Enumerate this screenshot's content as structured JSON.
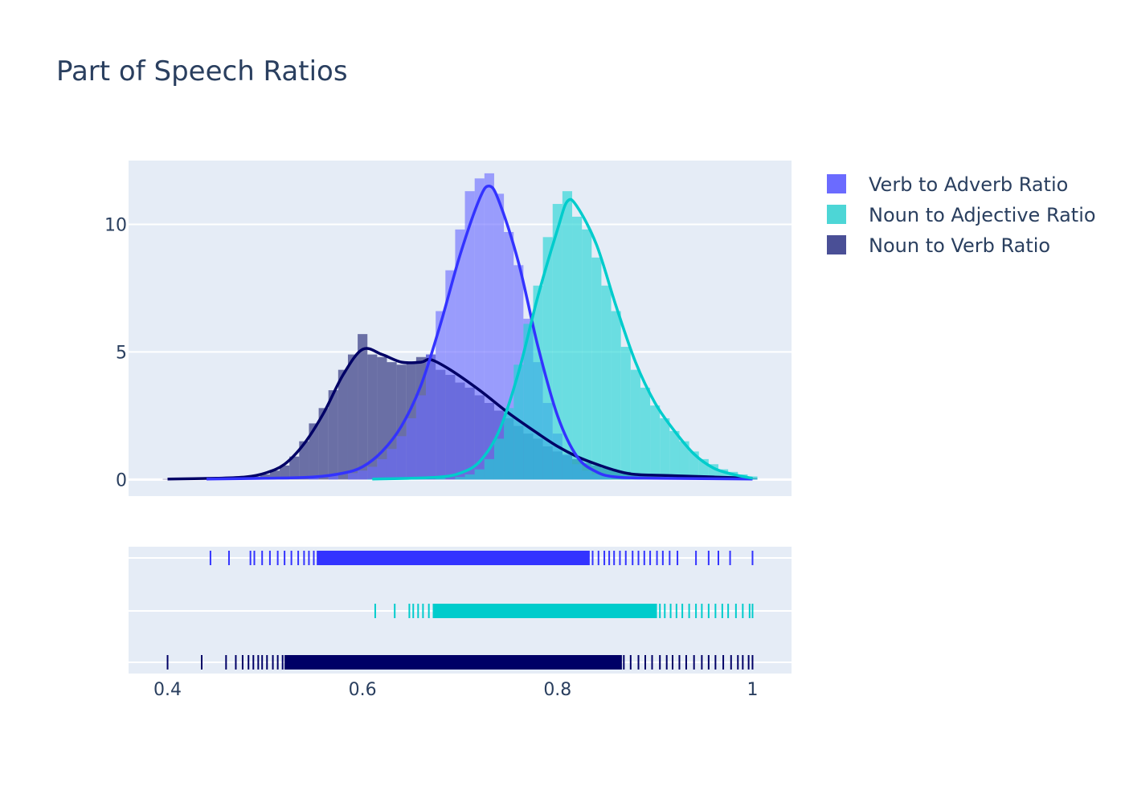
{
  "chart_data": {
    "type": "histogram-kde-rug",
    "title": "Part of Speech Ratios",
    "xlabel": "",
    "ylabel": "",
    "xlim": [
      0.36,
      1.04
    ],
    "ylim": [
      -0.65,
      12.5
    ],
    "x_ticks": [
      "0.4",
      "0.6",
      "0.8",
      "1"
    ],
    "x_tick_values": [
      0.4,
      0.6,
      0.8,
      1.0
    ],
    "y_ticks": [
      "0",
      "5",
      "10"
    ],
    "y_tick_values": [
      0,
      5,
      10
    ],
    "grid": true,
    "legend_position": "right",
    "bin_width": 0.01,
    "series": [
      {
        "name": "Noun to Verb Ratio",
        "color": "#000066",
        "bar_color": "#1f2273",
        "hist": [
          [
            0.4,
            0.02
          ],
          [
            0.44,
            0.03
          ],
          [
            0.46,
            0.05
          ],
          [
            0.48,
            0.08
          ],
          [
            0.49,
            0.12
          ],
          [
            0.5,
            0.2
          ],
          [
            0.51,
            0.35
          ],
          [
            0.52,
            0.55
          ],
          [
            0.53,
            0.9
          ],
          [
            0.54,
            1.5
          ],
          [
            0.55,
            2.2
          ],
          [
            0.56,
            2.8
          ],
          [
            0.57,
            3.5
          ],
          [
            0.58,
            4.3
          ],
          [
            0.59,
            4.9
          ],
          [
            0.6,
            5.7
          ],
          [
            0.61,
            4.9
          ],
          [
            0.62,
            4.8
          ],
          [
            0.63,
            4.6
          ],
          [
            0.64,
            4.5
          ],
          [
            0.65,
            4.6
          ],
          [
            0.66,
            4.8
          ],
          [
            0.67,
            4.9
          ],
          [
            0.68,
            4.3
          ],
          [
            0.69,
            4.1
          ],
          [
            0.7,
            3.8
          ],
          [
            0.71,
            3.6
          ],
          [
            0.72,
            3.3
          ],
          [
            0.73,
            3.0
          ],
          [
            0.74,
            2.7
          ],
          [
            0.75,
            2.4
          ],
          [
            0.76,
            2.1
          ],
          [
            0.77,
            1.8
          ],
          [
            0.78,
            1.6
          ],
          [
            0.79,
            1.3
          ],
          [
            0.8,
            1.1
          ],
          [
            0.81,
            0.95
          ],
          [
            0.82,
            0.8
          ],
          [
            0.83,
            0.65
          ],
          [
            0.84,
            0.55
          ],
          [
            0.85,
            0.45
          ],
          [
            0.86,
            0.35
          ],
          [
            0.87,
            0.3
          ],
          [
            0.88,
            0.25
          ],
          [
            0.89,
            0.2
          ],
          [
            0.9,
            0.18
          ],
          [
            0.92,
            0.15
          ],
          [
            0.94,
            0.12
          ],
          [
            0.96,
            0.1
          ],
          [
            0.98,
            0.08
          ],
          [
            1.0,
            0.06
          ]
        ],
        "kde": [
          [
            0.4,
            0.02
          ],
          [
            0.45,
            0.05
          ],
          [
            0.48,
            0.1
          ],
          [
            0.5,
            0.25
          ],
          [
            0.52,
            0.6
          ],
          [
            0.54,
            1.4
          ],
          [
            0.56,
            2.6
          ],
          [
            0.58,
            4.1
          ],
          [
            0.6,
            5.1
          ],
          [
            0.62,
            4.9
          ],
          [
            0.64,
            4.6
          ],
          [
            0.66,
            4.6
          ],
          [
            0.67,
            4.7
          ],
          [
            0.69,
            4.3
          ],
          [
            0.72,
            3.5
          ],
          [
            0.75,
            2.6
          ],
          [
            0.78,
            1.8
          ],
          [
            0.8,
            1.3
          ],
          [
            0.82,
            0.9
          ],
          [
            0.84,
            0.6
          ],
          [
            0.86,
            0.35
          ],
          [
            0.88,
            0.2
          ],
          [
            0.92,
            0.15
          ],
          [
            0.96,
            0.1
          ],
          [
            1.0,
            0.05
          ]
        ],
        "rug_min": 0.4,
        "rug_outliers": [
          0.4,
          0.435,
          0.46,
          0.47,
          0.477,
          0.483,
          0.488,
          0.493,
          0.497,
          0.502,
          0.508,
          0.513,
          0.518,
          0.868,
          0.875,
          0.883,
          0.89,
          0.897,
          0.905,
          0.912,
          0.918,
          0.925,
          0.932,
          0.94,
          0.948,
          0.955,
          0.962,
          0.97,
          0.978,
          0.985,
          0.99,
          0.996,
          1.0
        ],
        "rug_dense": [
          0.52,
          0.866
        ]
      },
      {
        "name": "Verb to Adverb Ratio",
        "color": "#3333ff",
        "bar_color": "#6b6bff",
        "hist": [
          [
            0.44,
            0.02
          ],
          [
            0.48,
            0.04
          ],
          [
            0.52,
            0.06
          ],
          [
            0.55,
            0.1
          ],
          [
            0.57,
            0.15
          ],
          [
            0.59,
            0.25
          ],
          [
            0.6,
            0.35
          ],
          [
            0.61,
            0.5
          ],
          [
            0.62,
            0.8
          ],
          [
            0.63,
            1.2
          ],
          [
            0.64,
            1.7
          ],
          [
            0.65,
            2.4
          ],
          [
            0.66,
            3.3
          ],
          [
            0.67,
            4.9
          ],
          [
            0.68,
            6.6
          ],
          [
            0.69,
            8.2
          ],
          [
            0.7,
            9.8
          ],
          [
            0.71,
            11.3
          ],
          [
            0.72,
            11.8
          ],
          [
            0.73,
            12.0
          ],
          [
            0.74,
            11.2
          ],
          [
            0.75,
            9.7
          ],
          [
            0.76,
            8.4
          ],
          [
            0.77,
            6.3
          ],
          [
            0.78,
            4.6
          ],
          [
            0.79,
            3.0
          ],
          [
            0.8,
            1.8
          ],
          [
            0.81,
            1.0
          ],
          [
            0.82,
            0.6
          ],
          [
            0.83,
            0.35
          ],
          [
            0.84,
            0.2
          ],
          [
            0.85,
            0.12
          ],
          [
            0.87,
            0.08
          ],
          [
            0.9,
            0.05
          ],
          [
            0.95,
            0.03
          ],
          [
            1.0,
            0.02
          ]
        ],
        "kde": [
          [
            0.44,
            0.02
          ],
          [
            0.5,
            0.05
          ],
          [
            0.55,
            0.1
          ],
          [
            0.58,
            0.25
          ],
          [
            0.6,
            0.5
          ],
          [
            0.62,
            1.1
          ],
          [
            0.64,
            2.1
          ],
          [
            0.66,
            3.7
          ],
          [
            0.68,
            6.1
          ],
          [
            0.7,
            8.8
          ],
          [
            0.72,
            11.0
          ],
          [
            0.73,
            11.5
          ],
          [
            0.74,
            10.9
          ],
          [
            0.76,
            8.5
          ],
          [
            0.78,
            5.2
          ],
          [
            0.8,
            2.5
          ],
          [
            0.82,
            0.9
          ],
          [
            0.84,
            0.3
          ],
          [
            0.86,
            0.1
          ],
          [
            0.9,
            0.05
          ],
          [
            1.0,
            0.02
          ]
        ],
        "rug_min": 0.44,
        "rug_outliers": [
          0.444,
          0.463,
          0.485,
          0.489,
          0.497,
          0.505,
          0.513,
          0.52,
          0.527,
          0.534,
          0.54,
          0.545,
          0.55,
          0.836,
          0.842,
          0.848,
          0.853,
          0.858,
          0.864,
          0.87,
          0.877,
          0.883,
          0.889,
          0.895,
          0.902,
          0.908,
          0.915,
          0.923,
          0.942,
          0.955,
          0.965,
          0.977,
          1.0
        ],
        "rug_dense": [
          0.553,
          0.833
        ]
      },
      {
        "name": "Noun to Adjective Ratio",
        "color": "#00cccc",
        "bar_color": "#1fd3d3",
        "hist": [
          [
            0.61,
            0.02
          ],
          [
            0.65,
            0.04
          ],
          [
            0.68,
            0.06
          ],
          [
            0.7,
            0.1
          ],
          [
            0.71,
            0.2
          ],
          [
            0.72,
            0.4
          ],
          [
            0.73,
            0.8
          ],
          [
            0.74,
            1.6
          ],
          [
            0.75,
            2.8
          ],
          [
            0.76,
            4.5
          ],
          [
            0.77,
            6.1
          ],
          [
            0.78,
            7.6
          ],
          [
            0.79,
            9.5
          ],
          [
            0.8,
            10.8
          ],
          [
            0.81,
            11.3
          ],
          [
            0.82,
            10.3
          ],
          [
            0.83,
            9.8
          ],
          [
            0.84,
            8.7
          ],
          [
            0.85,
            7.6
          ],
          [
            0.86,
            6.6
          ],
          [
            0.87,
            5.2
          ],
          [
            0.88,
            4.3
          ],
          [
            0.89,
            3.6
          ],
          [
            0.9,
            2.9
          ],
          [
            0.91,
            2.4
          ],
          [
            0.92,
            1.9
          ],
          [
            0.93,
            1.5
          ],
          [
            0.94,
            1.1
          ],
          [
            0.95,
            0.8
          ],
          [
            0.96,
            0.6
          ],
          [
            0.97,
            0.4
          ],
          [
            0.98,
            0.3
          ],
          [
            0.99,
            0.2
          ],
          [
            1.0,
            0.12
          ]
        ],
        "kde": [
          [
            0.61,
            0.02
          ],
          [
            0.65,
            0.05
          ],
          [
            0.68,
            0.1
          ],
          [
            0.7,
            0.25
          ],
          [
            0.72,
            0.7
          ],
          [
            0.74,
            1.9
          ],
          [
            0.76,
            4.2
          ],
          [
            0.78,
            7.2
          ],
          [
            0.8,
            9.8
          ],
          [
            0.81,
            10.9
          ],
          [
            0.82,
            10.7
          ],
          [
            0.84,
            9.2
          ],
          [
            0.86,
            6.8
          ],
          [
            0.88,
            4.6
          ],
          [
            0.9,
            3.0
          ],
          [
            0.92,
            1.9
          ],
          [
            0.94,
            1.0
          ],
          [
            0.96,
            0.45
          ],
          [
            0.98,
            0.2
          ],
          [
            1.0,
            0.05
          ]
        ],
        "rug_min": 0.61,
        "rug_outliers": [
          0.613,
          0.633,
          0.648,
          0.652,
          0.657,
          0.662,
          0.668,
          0.905,
          0.91,
          0.916,
          0.922,
          0.928,
          0.935,
          0.942,
          0.948,
          0.955,
          0.962,
          0.969,
          0.975,
          0.983,
          0.99,
          0.997,
          1.0
        ],
        "rug_dense": [
          0.672,
          0.902
        ]
      }
    ]
  },
  "legend": {
    "items": [
      {
        "label": "Verb to Adverb Ratio",
        "color": "#6b6bff"
      },
      {
        "label": "Noun to Adjective Ratio",
        "color": "#4dd6d6"
      },
      {
        "label": "Noun to Verb Ratio",
        "color": "#4a4f96"
      }
    ]
  }
}
